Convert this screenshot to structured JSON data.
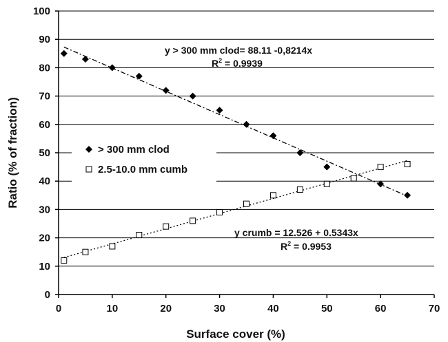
{
  "chart_data": {
    "type": "scatter",
    "xlabel": "Surface cover (%)",
    "ylabel": "Ratio (% of fraction)",
    "xlim": [
      0,
      70
    ],
    "ylim": [
      0,
      100
    ],
    "x_ticks": [
      0,
      10,
      20,
      30,
      40,
      50,
      60,
      70
    ],
    "y_ticks": [
      0,
      10,
      20,
      30,
      40,
      50,
      60,
      70,
      80,
      90,
      100
    ],
    "grid": "horizontal",
    "legend_position": "center-left",
    "series": [
      {
        "name": "> 300 mm clod",
        "marker": "filled-diamond",
        "color": "#000000",
        "x": [
          1,
          5,
          10,
          15,
          20,
          25,
          30,
          35,
          40,
          45,
          50,
          60,
          65
        ],
        "y": [
          85,
          83,
          80,
          77,
          72,
          70,
          65,
          60,
          56,
          50,
          45,
          39,
          35
        ],
        "trendline": {
          "slope": -0.8214,
          "intercept": 88.11,
          "x_range": [
            1,
            65
          ],
          "style": "dash-dot"
        },
        "equation": "y > 300 mm clod= 88.11 -0,8214x",
        "r2_label": "R",
        "r2_sup": "2",
        "r2_value": " = 0.9939"
      },
      {
        "name": "2.5-10.0 mm cumb",
        "marker": "open-square",
        "color": "#000000",
        "x": [
          1,
          5,
          10,
          15,
          20,
          25,
          30,
          35,
          40,
          45,
          50,
          55,
          60,
          65
        ],
        "y": [
          12,
          15,
          17,
          21,
          24,
          26,
          29,
          32,
          35,
          37,
          39,
          41,
          45,
          46
        ],
        "trendline": {
          "slope": 0.5343,
          "intercept": 12.526,
          "x_range": [
            1,
            65
          ],
          "style": "dotted"
        },
        "equation": "y crumb = 12.526 + 0.5343x",
        "r2_label": "R",
        "r2_sup": "2",
        "r2_value": " = 0.9953"
      }
    ]
  }
}
